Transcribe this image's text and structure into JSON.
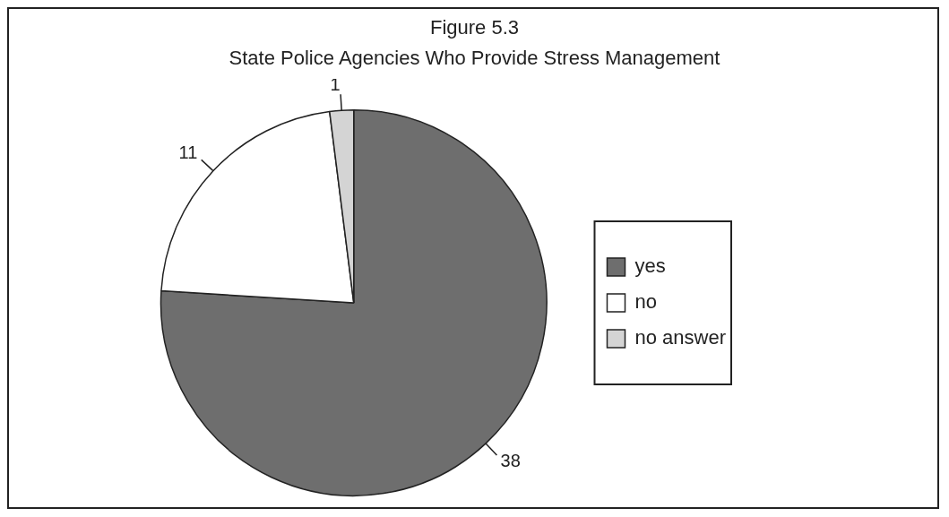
{
  "chart_data": {
    "type": "pie",
    "title": "Figure 5.3",
    "subtitle": "State Police Agencies Who Provide Stress Management",
    "categories": [
      "yes",
      "no",
      "no answer"
    ],
    "values": [
      38,
      11,
      1
    ],
    "colors": [
      "#6e6e6e",
      "#ffffff",
      "#d4d4d4"
    ],
    "data_labels": true,
    "legend": "right"
  }
}
